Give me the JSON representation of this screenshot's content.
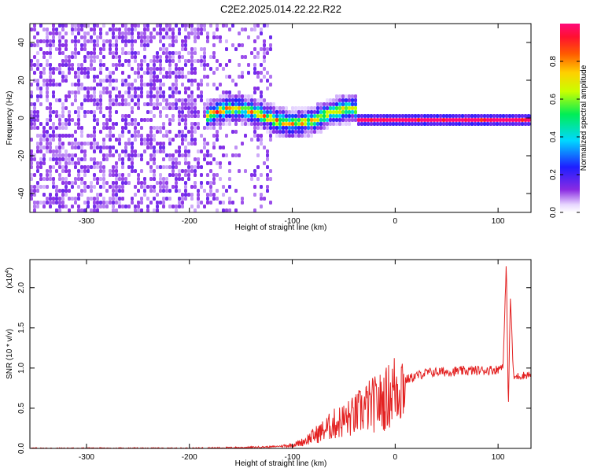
{
  "title": "C2E2.2025.014.22.22.R22",
  "chart_data": [
    {
      "type": "heatmap",
      "xlabel": "Height of straight line (km)",
      "ylabel": "Frequency (Hz)",
      "xlim": [
        -355,
        132
      ],
      "ylim": [
        -50,
        50
      ],
      "xticks": [
        "-300",
        "-200",
        "-100",
        "0",
        "100"
      ],
      "yticks": [
        "-40",
        "-20",
        "0",
        "20",
        "40"
      ],
      "colorbar": {
        "label": "Normalized spectral amplitude",
        "range": [
          0,
          1
        ],
        "ticks": [
          "0.0",
          "0.2",
          "0.4",
          "0.6",
          "0.8"
        ],
        "colormap": "rainbow (white to purple, blue, cyan, green, yellow, orange, red, magenta)"
      },
      "features": {
        "noise_region_x": [
          -355,
          -120
        ],
        "main_signal_start_x": -185,
        "steady_signal_start_x": -40,
        "signal_frequency_hz": 0
      }
    },
    {
      "type": "line",
      "xlabel": "Height of straight line (km)",
      "ylabel": "SNR (10 * v/v)",
      "yscale_label": "(x10",
      "yscale_exp": "4",
      "xlim": [
        -355,
        132
      ],
      "ylim": [
        0,
        2.35
      ],
      "xticks": [
        "-300",
        "-200",
        "-100",
        "0",
        "100"
      ],
      "yticks": [
        "0.0",
        "0.5",
        "1.0",
        "1.5",
        "2.0"
      ],
      "color": "#e32222",
      "series": [
        {
          "x": [
            -355,
            -300,
            -250,
            -200,
            -150,
            -120,
            -100,
            -90,
            -80,
            -70,
            -60,
            -50,
            -40,
            -30,
            -20,
            -10,
            0,
            10,
            20,
            30,
            40,
            60,
            80,
            100,
            105,
            108,
            110,
            112,
            115,
            120,
            132
          ],
          "y": [
            0.0,
            0.0,
            0.0,
            0.0,
            0.01,
            0.02,
            0.04,
            0.08,
            0.15,
            0.22,
            0.3,
            0.35,
            0.4,
            0.5,
            0.55,
            0.6,
            0.75,
            0.85,
            0.9,
            0.94,
            0.95,
            0.96,
            0.97,
            0.98,
            1.05,
            2.3,
            0.5,
            1.9,
            0.88,
            0.9,
            0.92
          ]
        }
      ]
    }
  ]
}
